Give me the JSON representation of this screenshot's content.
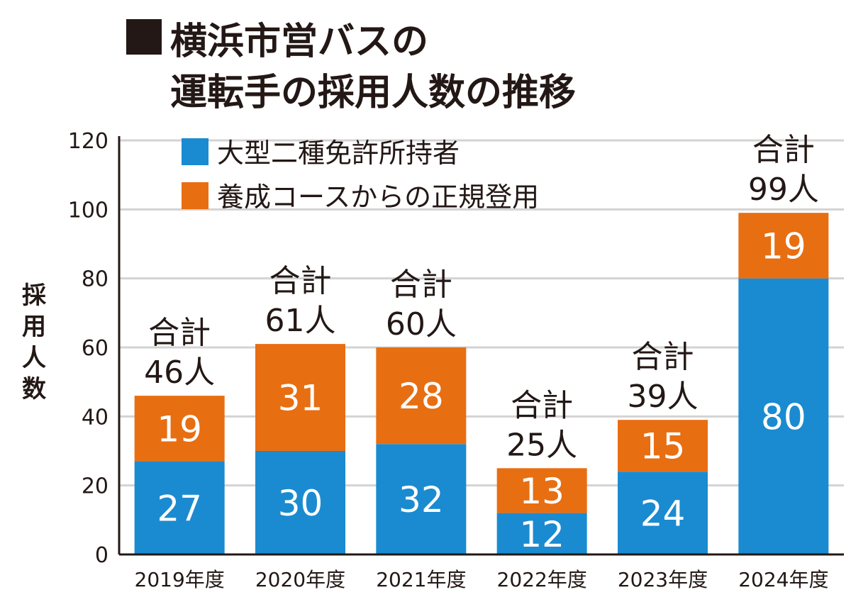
{
  "title": {
    "marker": "■",
    "line1": "横浜市営バスの",
    "line2": "運転手の採用人数の推移"
  },
  "chart_data": {
    "type": "bar",
    "stacked": true,
    "categories": [
      "2019年度",
      "2020年度",
      "2021年度",
      "2022年度",
      "2023年度",
      "2024年度"
    ],
    "series": [
      {
        "name": "大型二種免許所持者",
        "values": [
          27,
          30,
          32,
          12,
          24,
          80
        ],
        "color": "#1a8bd0"
      },
      {
        "name": "養成コースからの正規登用",
        "values": [
          19,
          31,
          28,
          13,
          15,
          19
        ],
        "color": "#e86e12"
      }
    ],
    "totals": [
      46,
      61,
      60,
      25,
      39,
      99
    ],
    "total_prefix": "合計",
    "total_unit": "人",
    "ylabel": "採用人数",
    "ylim": [
      0,
      120
    ],
    "yticks": [
      0,
      20,
      40,
      60,
      80,
      100,
      120
    ],
    "grid": true,
    "legend_position": "top-left"
  }
}
